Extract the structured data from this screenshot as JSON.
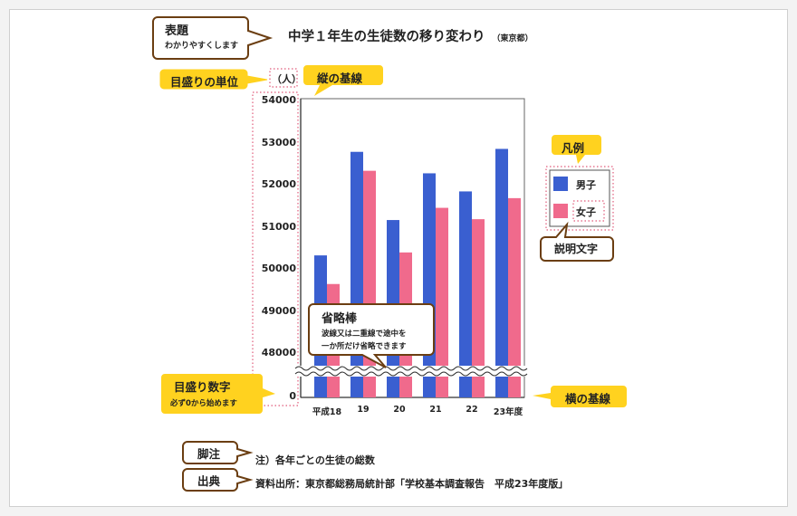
{
  "title": "中学１年生の生徒数の移り変わり",
  "title_note": "（東京都）",
  "unit_label": "（人）",
  "footnote": "注）各年ごとの生徒の総数",
  "source": "資料出所：東京都総務局統計部「学校基本調査報告　平成23年度版」",
  "callouts": {
    "title_label": "表題",
    "title_sub": "わかりやすくします",
    "unit": "目盛りの単位",
    "vaxis": "縦の基線",
    "legend": "凡例",
    "legend_text": "説明文字",
    "omit": "省略棒",
    "omit_sub1": "波線又は二重線で途中を",
    "omit_sub2": "一か所だけ省略できます",
    "scale_num": "目盛り数字",
    "scale_num_sub": "必ず0から始めます",
    "haxis": "横の基線",
    "footnote": "脚注",
    "source": "出典"
  },
  "colors": {
    "male": "#3a5fd0",
    "female": "#f06a8c",
    "callout_fill": "#ffd21f",
    "callout_border": "#6b3e12",
    "dotted": "#e05a7a"
  },
  "chart_data": {
    "type": "bar",
    "categories": [
      "平成18",
      "19",
      "20",
      "21",
      "22",
      "23年度"
    ],
    "series": [
      {
        "name": "男子",
        "values": [
          50320,
          52780,
          51160,
          52270,
          51840,
          52850
        ]
      },
      {
        "name": "女子",
        "values": [
          49640,
          52330,
          50390,
          51450,
          51180,
          51680
        ]
      }
    ],
    "yticks": [
      "54000",
      "53000",
      "52000",
      "51000",
      "50000",
      "49000",
      "48000",
      "0"
    ],
    "ylim": [
      47500,
      54000
    ],
    "axis_break": true,
    "grid": false,
    "legend_position": "right"
  }
}
